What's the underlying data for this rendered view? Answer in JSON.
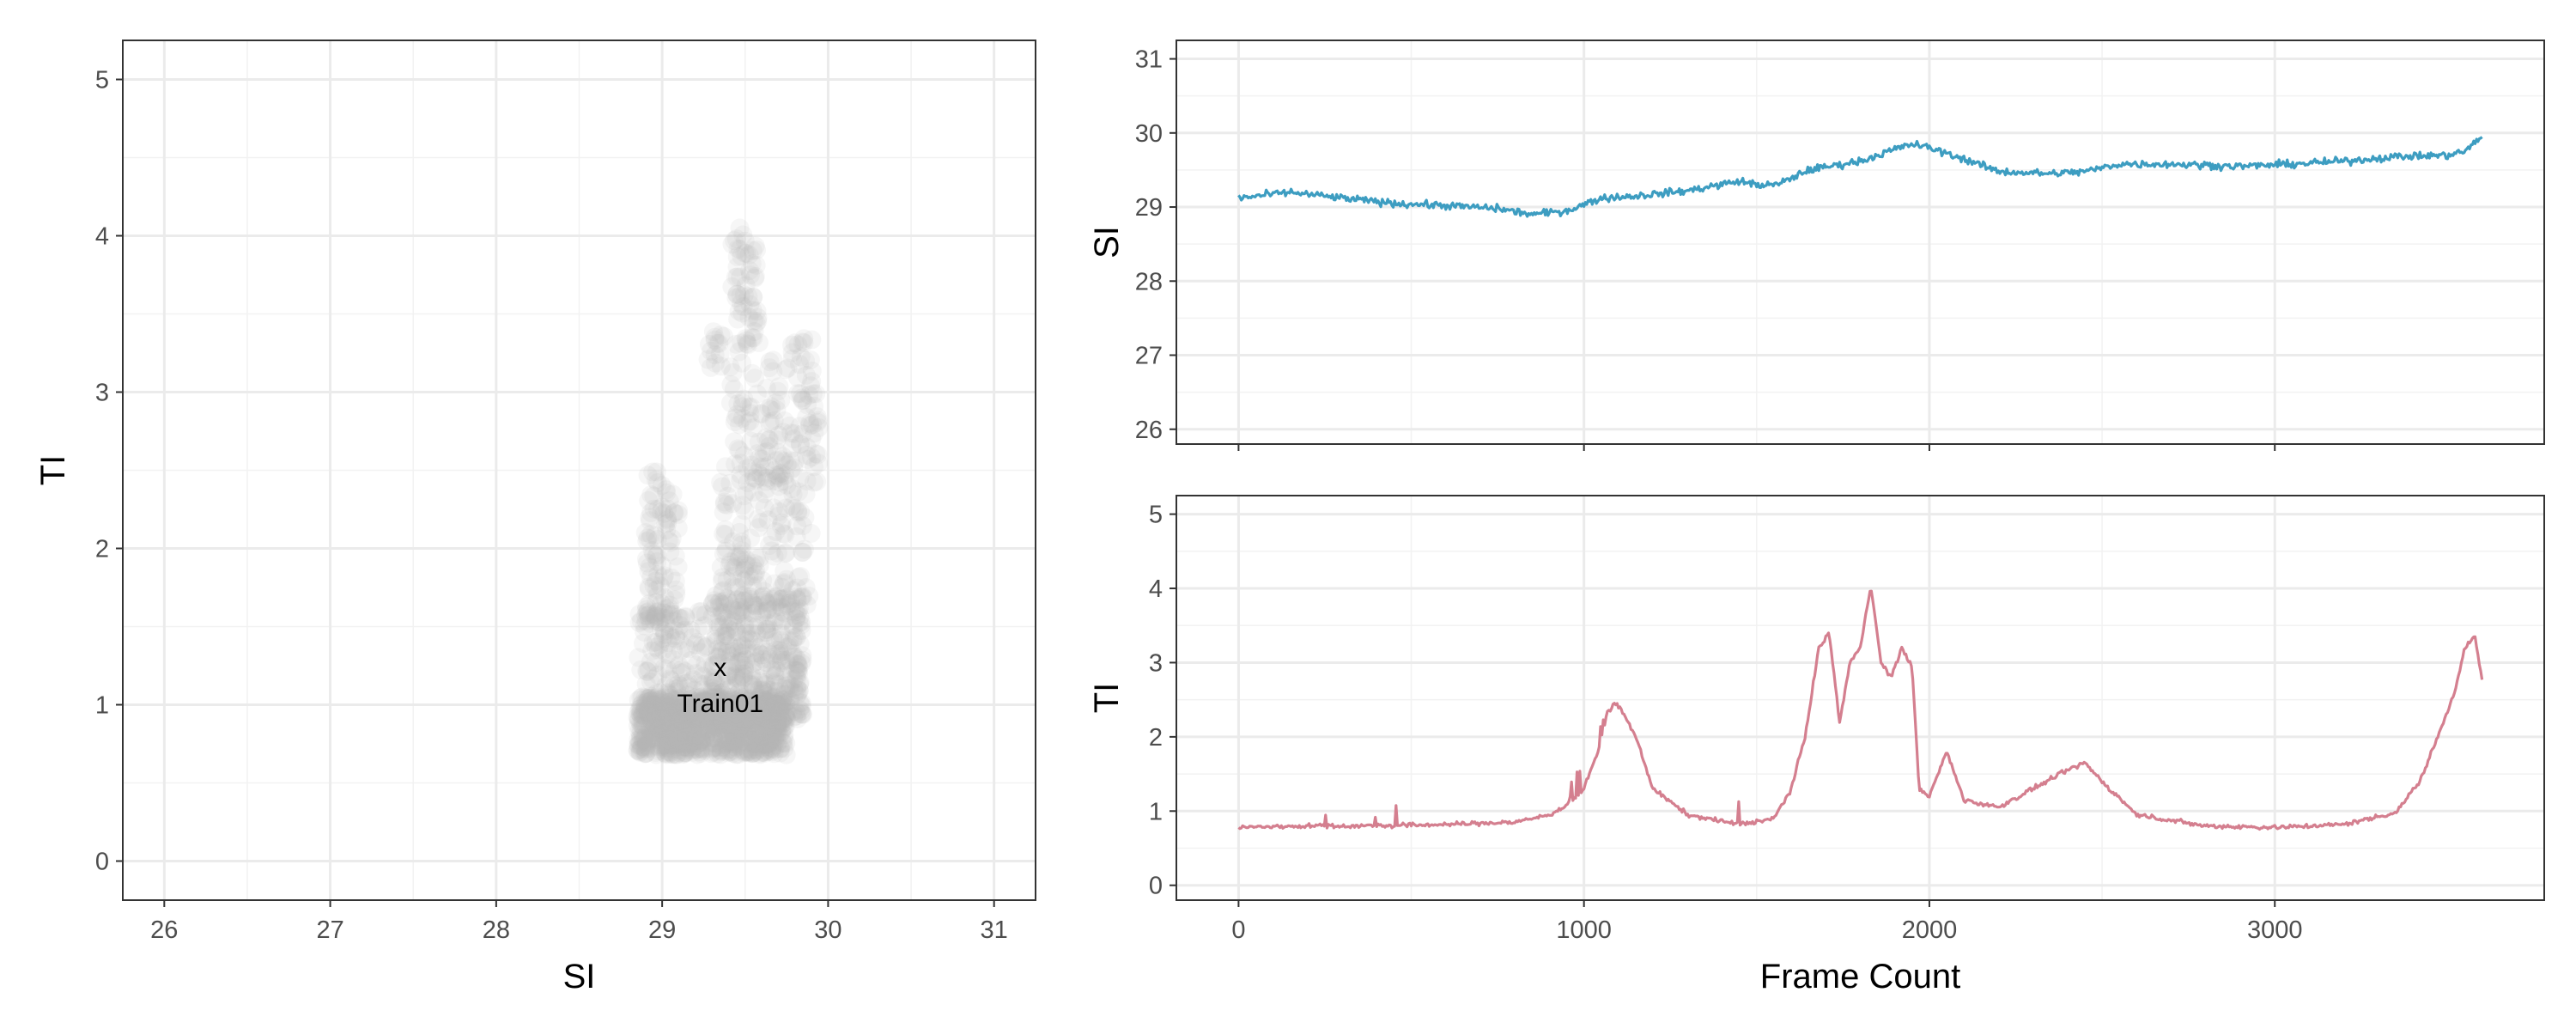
{
  "chart_data": [
    {
      "type": "scatter",
      "panel": "left",
      "xlabel": "SI",
      "ylabel": "TI",
      "xlim": [
        25.75,
        31.25
      ],
      "ylim": [
        -0.25,
        5.25
      ],
      "xticks": [
        26,
        27,
        28,
        29,
        30,
        31
      ],
      "yticks": [
        0,
        1,
        2,
        3,
        4,
        5
      ],
      "grid": true,
      "point_color": "#b3b3b3",
      "annotation": {
        "marker": "x",
        "label": "Train01",
        "x": 29.35,
        "y": 1.24
      },
      "clusters": [
        {
          "x": [
            28.85,
            29.75
          ],
          "y": [
            0.68,
            1.05
          ],
          "weight": 900
        },
        {
          "x": [
            29.3,
            29.85
          ],
          "y": [
            0.9,
            1.7
          ],
          "weight": 400
        },
        {
          "x": [
            28.85,
            29.3
          ],
          "y": [
            0.9,
            1.6
          ],
          "weight": 150
        },
        {
          "x": [
            28.9,
            29.1
          ],
          "y": [
            1.5,
            2.5
          ],
          "weight": 90
        },
        {
          "x": [
            29.35,
            29.9
          ],
          "y": [
            1.6,
            2.6
          ],
          "weight": 160
        },
        {
          "x": [
            29.4,
            29.95
          ],
          "y": [
            2.4,
            3.35
          ],
          "weight": 150
        },
        {
          "x": [
            29.42,
            29.58
          ],
          "y": [
            3.3,
            4.05
          ],
          "weight": 55
        },
        {
          "x": [
            29.27,
            29.38
          ],
          "y": [
            3.15,
            3.4
          ],
          "weight": 15
        }
      ]
    },
    {
      "type": "line",
      "panel": "top-right",
      "xlabel": "",
      "ylabel": "SI",
      "xlim": [
        -180,
        3780
      ],
      "ylim": [
        25.8,
        31.25
      ],
      "xticks": [
        0,
        1000,
        2000,
        3000
      ],
      "yticks": [
        26,
        27,
        28,
        29,
        30,
        31
      ],
      "grid": true,
      "color": "#3d9dc1",
      "noise": 0.05,
      "x": [
        0,
        150,
        300,
        450,
        600,
        750,
        850,
        950,
        1050,
        1150,
        1300,
        1450,
        1500,
        1560,
        1650,
        1800,
        1900,
        1950,
        2000,
        2100,
        2200,
        2350,
        2450,
        2550,
        2700,
        2900,
        3050,
        3200,
        3350,
        3500,
        3550,
        3600
      ],
      "y": [
        29.12,
        29.2,
        29.12,
        29.05,
        29.02,
        28.98,
        28.9,
        28.95,
        29.12,
        29.15,
        29.22,
        29.35,
        29.3,
        29.3,
        29.5,
        29.62,
        29.78,
        29.85,
        29.8,
        29.65,
        29.48,
        29.45,
        29.48,
        29.58,
        29.58,
        29.55,
        29.58,
        29.62,
        29.68,
        29.7,
        29.75,
        29.95
      ]
    },
    {
      "type": "line",
      "panel": "bottom-right",
      "xlabel": "Frame Count",
      "ylabel": "TI",
      "xlim": [
        -180,
        3780
      ],
      "ylim": [
        -0.2,
        5.25
      ],
      "xticks": [
        0,
        1000,
        2000,
        3000
      ],
      "yticks": [
        0,
        1,
        2,
        3,
        4,
        5
      ],
      "grid": true,
      "color": "#d47f8f",
      "noise": 0.03,
      "x": [
        0,
        200,
        400,
        600,
        800,
        900,
        960,
        1000,
        1040,
        1070,
        1090,
        1110,
        1150,
        1200,
        1300,
        1450,
        1550,
        1600,
        1640,
        1680,
        1710,
        1740,
        1770,
        1800,
        1830,
        1860,
        1890,
        1920,
        1950,
        1970,
        2000,
        2050,
        2100,
        2200,
        2300,
        2400,
        2450,
        2500,
        2600,
        2800,
        3000,
        3200,
        3350,
        3420,
        3480,
        3520,
        3550,
        3580,
        3600
      ],
      "y": [
        0.78,
        0.8,
        0.8,
        0.82,
        0.85,
        0.95,
        1.1,
        1.3,
        1.8,
        2.35,
        2.45,
        2.35,
        2.0,
        1.3,
        0.95,
        0.82,
        0.9,
        1.3,
        2.0,
        3.2,
        3.4,
        2.2,
        3.0,
        3.2,
        4.05,
        3.0,
        2.8,
        3.2,
        2.95,
        1.3,
        1.2,
        1.8,
        1.15,
        1.05,
        1.3,
        1.55,
        1.65,
        1.4,
        0.95,
        0.8,
        0.78,
        0.82,
        0.98,
        1.4,
        2.1,
        2.6,
        3.2,
        3.35,
        2.75
      ]
    }
  ]
}
